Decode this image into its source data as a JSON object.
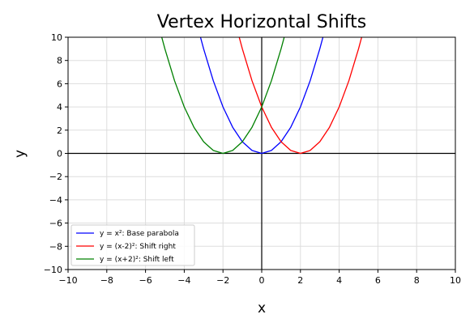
{
  "chart_data": {
    "type": "line",
    "title": "Vertex Horizontal Shifts",
    "xlabel": "x",
    "ylabel": "y",
    "xlim": [
      -10,
      10
    ],
    "ylim": [
      -10,
      10
    ],
    "xticks": [
      -10,
      -8,
      -6,
      -4,
      -2,
      0,
      2,
      4,
      6,
      8,
      10
    ],
    "yticks": [
      -10,
      -8,
      -6,
      -4,
      -2,
      0,
      2,
      4,
      6,
      8,
      10
    ],
    "xtick_labels": [
      "−10",
      "−8",
      "−6",
      "−4",
      "−2",
      "0",
      "2",
      "4",
      "6",
      "8",
      "10"
    ],
    "ytick_labels": [
      "−10",
      "−8",
      "−6",
      "−4",
      "−2",
      "0",
      "2",
      "4",
      "6",
      "8",
      "10"
    ],
    "grid": true,
    "legend_position": "lower-left",
    "series": [
      {
        "name": "y = x²: Base parabola",
        "color": "#0000ff",
        "x": [
          -3.2,
          -3,
          -2.5,
          -2,
          -1.5,
          -1,
          -0.5,
          0,
          0.5,
          1,
          1.5,
          2,
          2.5,
          3,
          3.2
        ],
        "y": [
          10.24,
          9,
          6.25,
          4,
          2.25,
          1,
          0.25,
          0,
          0.25,
          1,
          2.25,
          4,
          6.25,
          9,
          10.24
        ]
      },
      {
        "name": "y = (x-2)²: Shift right",
        "color": "#ff0000",
        "x": [
          -1.2,
          -1,
          -0.5,
          0,
          0.5,
          1,
          1.5,
          2,
          2.5,
          3,
          3.5,
          4,
          4.5,
          5,
          5.2
        ],
        "y": [
          10.24,
          9,
          6.25,
          4,
          2.25,
          1,
          0.25,
          0,
          0.25,
          1,
          2.25,
          4,
          6.25,
          9,
          10.24
        ]
      },
      {
        "name": "y = (x+2)²: Shift left",
        "color": "#008000",
        "x": [
          -5.2,
          -5,
          -4.5,
          -4,
          -3.5,
          -3,
          -2.5,
          -2,
          -1.5,
          -1,
          -0.5,
          0,
          0.5,
          1,
          1.2
        ],
        "y": [
          10.24,
          9,
          6.25,
          4,
          2.25,
          1,
          0.25,
          0,
          0.25,
          1,
          2.25,
          4,
          6.25,
          9,
          10.24
        ]
      }
    ]
  }
}
